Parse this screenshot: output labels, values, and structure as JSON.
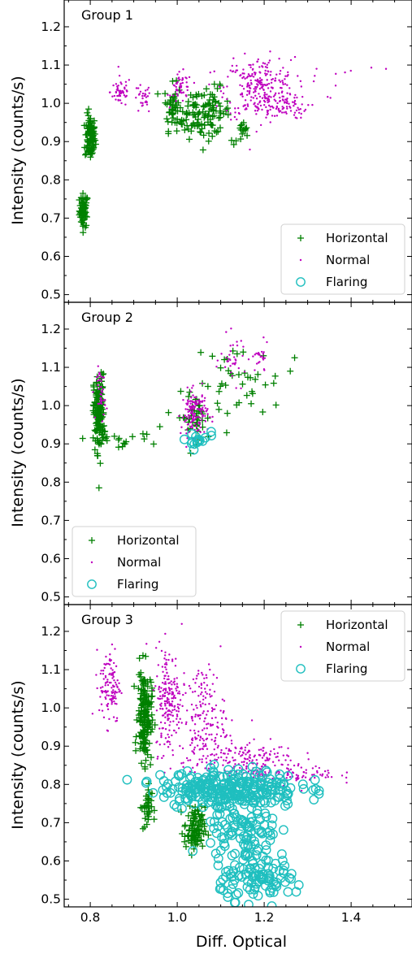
{
  "figure": {
    "xlabel": "Diff. Optical",
    "ylabel": "Intensity (counts/s)"
  },
  "colors": {
    "horizontal": "#008000",
    "normal": "#bf00bf",
    "flaring": "#1fbfbf"
  },
  "chart_data": [
    {
      "type": "scatter",
      "panel_label": "Group 1",
      "legend_position": "lower-right",
      "xlim": [
        0.74,
        1.54
      ],
      "ylim": [
        0.48,
        1.27
      ],
      "xticks": [
        0.8,
        1.0,
        1.2,
        1.4
      ],
      "yticks": [
        0.5,
        0.6,
        0.7,
        0.8,
        0.9,
        1.0,
        1.1,
        1.2
      ],
      "ytick_labels": [
        "0.5",
        "0.6",
        "0.7",
        "0.8",
        "0.9",
        "1.0",
        "1.1",
        "1.2"
      ],
      "legend": [
        "Horizontal",
        "Normal",
        "Flaring"
      ],
      "series": [
        {
          "name": "Horizontal",
          "marker": "+",
          "clusters": [
            {
              "x": 0.785,
              "y": 0.72,
              "sx": 0.005,
              "sy": 0.022,
              "n": 60
            },
            {
              "x": 0.8,
              "y": 0.91,
              "sx": 0.006,
              "sy": 0.03,
              "n": 100
            },
            {
              "x": 0.99,
              "y": 0.99,
              "sx": 0.01,
              "sy": 0.03,
              "n": 45
            },
            {
              "x": 1.04,
              "y": 0.97,
              "sx": 0.02,
              "sy": 0.03,
              "n": 55
            },
            {
              "x": 1.08,
              "y": 0.98,
              "sx": 0.02,
              "sy": 0.03,
              "n": 60
            },
            {
              "x": 1.15,
              "y": 0.92,
              "sx": 0.01,
              "sy": 0.015,
              "n": 15
            }
          ]
        },
        {
          "name": "Normal",
          "marker": ".",
          "clusters": [
            {
              "x": 0.87,
              "y": 1.03,
              "sx": 0.012,
              "sy": 0.02,
              "n": 50
            },
            {
              "x": 0.92,
              "y": 1.01,
              "sx": 0.01,
              "sy": 0.02,
              "n": 30
            },
            {
              "x": 1.01,
              "y": 1.04,
              "sx": 0.012,
              "sy": 0.02,
              "n": 50
            },
            {
              "x": 1.19,
              "y": 1.04,
              "sx": 0.04,
              "sy": 0.04,
              "n": 260
            },
            {
              "x": 1.24,
              "y": 0.99,
              "sx": 0.03,
              "sy": 0.015,
              "n": 60
            },
            {
              "x": 1.28,
              "y": 1.06,
              "sx": 0.09,
              "sy": 0.03,
              "n": 22
            }
          ]
        },
        {
          "name": "Flaring",
          "marker": "o",
          "clusters": []
        }
      ]
    },
    {
      "type": "scatter",
      "panel_label": "Group 2",
      "legend_position": "lower-left",
      "xlim": [
        0.74,
        1.54
      ],
      "ylim": [
        0.48,
        1.27
      ],
      "xticks": [
        0.8,
        1.0,
        1.2,
        1.4
      ],
      "yticks": [
        0.5,
        0.6,
        0.7,
        0.8,
        0.9,
        1.0,
        1.1,
        1.2
      ],
      "ytick_labels": [
        "0.5",
        "0.6",
        "0.7",
        "0.8",
        "0.9",
        "1.0",
        "1.1",
        "1.2"
      ],
      "legend": [
        "Horizontal",
        "Normal",
        "Flaring"
      ],
      "series": [
        {
          "name": "Horizontal",
          "marker": "+",
          "clusters": [
            {
              "x": 0.82,
              "y": 0.98,
              "sx": 0.006,
              "sy": 0.05,
              "n": 150
            },
            {
              "x": 0.86,
              "y": 0.91,
              "sx": 0.04,
              "sy": 0.01,
              "n": 18
            },
            {
              "x": 1.04,
              "y": 0.97,
              "sx": 0.02,
              "sy": 0.03,
              "n": 40
            },
            {
              "x": 1.14,
              "y": 1.06,
              "sx": 0.05,
              "sy": 0.05,
              "n": 40
            }
          ],
          "points": [
            [
              0.82,
              0.785
            ],
            [
              0.93,
              0.925
            ],
            [
              0.96,
              0.945
            ],
            [
              1.27,
              1.125
            ],
            [
              1.26,
              1.09
            ],
            [
              1.17,
              1.005
            ]
          ]
        },
        {
          "name": "Normal",
          "marker": ".",
          "clusters": [
            {
              "x": 0.825,
              "y": 1.03,
              "sx": 0.005,
              "sy": 0.035,
              "n": 40
            },
            {
              "x": 1.04,
              "y": 0.98,
              "sx": 0.015,
              "sy": 0.03,
              "n": 150
            },
            {
              "x": 1.13,
              "y": 1.12,
              "sx": 0.015,
              "sy": 0.03,
              "n": 35
            },
            {
              "x": 1.19,
              "y": 1.12,
              "sx": 0.01,
              "sy": 0.02,
              "n": 25
            }
          ]
        },
        {
          "name": "Flaring",
          "marker": "o",
          "clusters": [
            {
              "x": 1.045,
              "y": 0.91,
              "sx": 0.02,
              "sy": 0.012,
              "n": 16
            }
          ]
        }
      ]
    },
    {
      "type": "scatter",
      "panel_label": "Group 3",
      "legend_position": "upper-right",
      "xlim": [
        0.74,
        1.54
      ],
      "ylim": [
        0.48,
        1.27
      ],
      "xticks": [
        0.8,
        1.0,
        1.2,
        1.4
      ],
      "xtick_labels": [
        "0.8",
        "1.0",
        "1.2",
        "1.4"
      ],
      "yticks": [
        0.5,
        0.6,
        0.7,
        0.8,
        0.9,
        1.0,
        1.1,
        1.2
      ],
      "ytick_labels": [
        "0.5",
        "0.6",
        "0.7",
        "0.8",
        "0.9",
        "1.0",
        "1.1",
        "1.2"
      ],
      "legend": [
        "Horizontal",
        "Normal",
        "Flaring"
      ],
      "series": [
        {
          "name": "Horizontal",
          "marker": "+",
          "clusters": [
            {
              "x": 0.925,
              "y": 0.98,
              "sx": 0.008,
              "sy": 0.06,
              "n": 170
            },
            {
              "x": 0.93,
              "y": 0.74,
              "sx": 0.006,
              "sy": 0.03,
              "n": 35
            },
            {
              "x": 1.04,
              "y": 0.68,
              "sx": 0.012,
              "sy": 0.03,
              "n": 90
            }
          ]
        },
        {
          "name": "Normal",
          "marker": ".",
          "clusters": [
            {
              "x": 0.845,
              "y": 1.06,
              "sx": 0.012,
              "sy": 0.05,
              "n": 120
            },
            {
              "x": 0.98,
              "y": 1.02,
              "sx": 0.015,
              "sy": 0.07,
              "n": 200
            },
            {
              "x": 1.06,
              "y": 0.97,
              "sx": 0.025,
              "sy": 0.07,
              "n": 180
            },
            {
              "x": 1.15,
              "y": 0.86,
              "sx": 0.06,
              "sy": 0.03,
              "n": 200
            },
            {
              "x": 1.27,
              "y": 0.83,
              "sx": 0.05,
              "sy": 0.015,
              "n": 80
            }
          ]
        },
        {
          "name": "Flaring",
          "marker": "o",
          "clusters": [
            {
              "x": 1.12,
              "y": 0.79,
              "sx": 0.08,
              "sy": 0.025,
              "n": 260
            },
            {
              "x": 1.15,
              "y": 0.67,
              "sx": 0.04,
              "sy": 0.05,
              "n": 110
            },
            {
              "x": 1.2,
              "y": 0.55,
              "sx": 0.05,
              "sy": 0.025,
              "n": 90
            }
          ]
        }
      ]
    }
  ]
}
